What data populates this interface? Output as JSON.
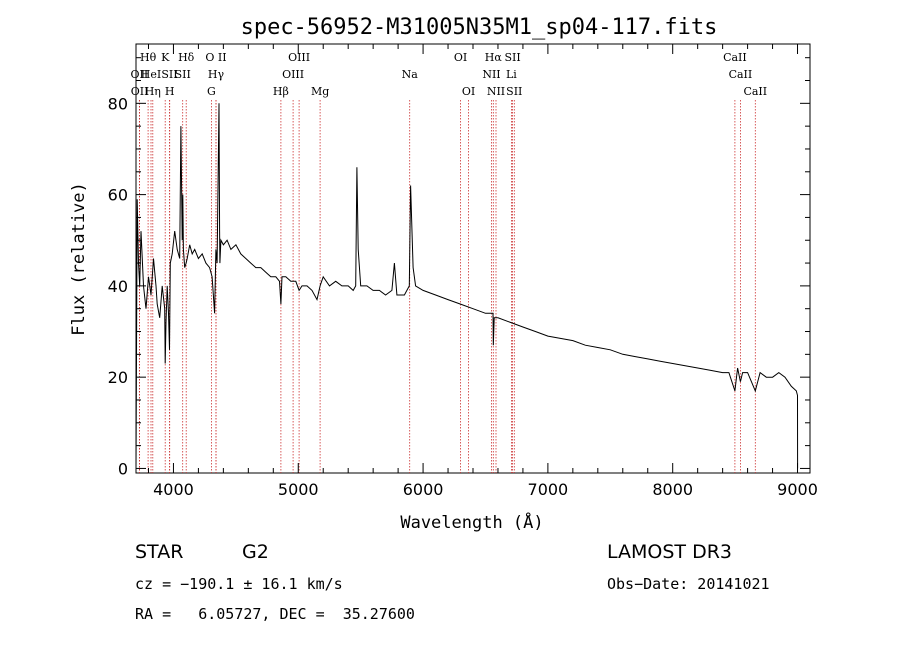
{
  "chart_data": {
    "type": "line",
    "title": "spec-56952-M31005N35M1_sp04-117.fits",
    "xlabel": "Wavelength (Å)",
    "ylabel": "Flux (relative)",
    "xlim": [
      3700,
      9100
    ],
    "ylim": [
      -1,
      93
    ],
    "xticks": [
      4000,
      5000,
      6000,
      7000,
      8000,
      9000
    ],
    "yticks": [
      0,
      20,
      40,
      60,
      80
    ],
    "spectrum": {
      "x": [
        3700,
        3710,
        3720,
        3730,
        3740,
        3760,
        3780,
        3800,
        3820,
        3840,
        3860,
        3870,
        3890,
        3910,
        3930,
        3934,
        3940,
        3950,
        3960,
        3968,
        3975,
        3990,
        4010,
        4030,
        4050,
        4060,
        4070,
        4075,
        4080,
        4090,
        4101,
        4110,
        4130,
        4150,
        4170,
        4200,
        4230,
        4260,
        4290,
        4310,
        4330,
        4340,
        4350,
        4365,
        4370,
        4372,
        4380,
        4400,
        4430,
        4460,
        4500,
        4540,
        4580,
        4620,
        4660,
        4700,
        4740,
        4780,
        4820,
        4850,
        4861,
        4870,
        4900,
        4940,
        4980,
        5007,
        5030,
        5070,
        5110,
        5150,
        5175,
        5200,
        5250,
        5300,
        5350,
        5400,
        5440,
        5460,
        5470,
        5480,
        5500,
        5550,
        5600,
        5650,
        5700,
        5750,
        5770,
        5790,
        5800,
        5850,
        5890,
        5900,
        5920,
        5940,
        6000,
        6100,
        6200,
        6300,
        6400,
        6500,
        6560,
        6563,
        6570,
        6600,
        6700,
        6800,
        6900,
        7000,
        7100,
        7200,
        7300,
        7400,
        7500,
        7600,
        7700,
        7800,
        7900,
        8000,
        8100,
        8200,
        8300,
        8400,
        8450,
        8498,
        8520,
        8542,
        8560,
        8600,
        8662,
        8700,
        8750,
        8800,
        8850,
        8900,
        8950,
        8990,
        9000,
        9001
      ],
      "flux": [
        0,
        59,
        45,
        40,
        52,
        40,
        35,
        42,
        38,
        46,
        40,
        36,
        33,
        40,
        35,
        23,
        32,
        40,
        34,
        26,
        45,
        47,
        52,
        48,
        46,
        75,
        50,
        60,
        48,
        44,
        45,
        46,
        49,
        47,
        48,
        46,
        47,
        45,
        44,
        42,
        34,
        48,
        45,
        80,
        52,
        45,
        50,
        49,
        50,
        48,
        49,
        47,
        46,
        45,
        44,
        44,
        43,
        42,
        42,
        41,
        36,
        42,
        42,
        41,
        41,
        39,
        40,
        40,
        39,
        37,
        40,
        42,
        40,
        41,
        40,
        40,
        39,
        40,
        66,
        48,
        40,
        40,
        39,
        39,
        38,
        39,
        45,
        38,
        38,
        38,
        40,
        62,
        44,
        40,
        39,
        38,
        37,
        36,
        35,
        34,
        34,
        27,
        33,
        33,
        32,
        31,
        30,
        29,
        28.5,
        28,
        27,
        26.5,
        26,
        25,
        24.5,
        24,
        23.5,
        23,
        22.5,
        22,
        21.5,
        21,
        21,
        17,
        22,
        19,
        21,
        21,
        17,
        21,
        20,
        20,
        21,
        20,
        18,
        17,
        16,
        0
      ]
    },
    "line_marks": [
      {
        "name": "OII",
        "x": 3727,
        "row": 1
      },
      {
        "name": "OII",
        "x": 3729,
        "row": 2
      },
      {
        "name": "Hθ",
        "x": 3797,
        "row": 0
      },
      {
        "name": "HeI",
        "x": 3820,
        "row": 1
      },
      {
        "name": "Hη",
        "x": 3835,
        "row": 2
      },
      {
        "name": "K",
        "x": 3934,
        "row": 0
      },
      {
        "name": "SII",
        "x": 3968,
        "row": 1
      },
      {
        "name": "H",
        "x": 3970,
        "row": 2
      },
      {
        "name": "Hδ",
        "x": 4102,
        "row": 0
      },
      {
        "name": "SII",
        "x": 4074,
        "row": 1
      },
      {
        "name": "O II",
        "x": 4341,
        "row": 0
      },
      {
        "name": "Hγ",
        "x": 4341,
        "row": 1
      },
      {
        "name": "G",
        "x": 4304,
        "row": 2
      },
      {
        "name": "Hβ",
        "x": 4861,
        "row": 2
      },
      {
        "name": "OIII",
        "x": 5007,
        "row": 0
      },
      {
        "name": "OIII",
        "x": 4959,
        "row": 1
      },
      {
        "name": "Mg",
        "x": 5175,
        "row": 2
      },
      {
        "name": "Na",
        "x": 5893,
        "row": 1
      },
      {
        "name": "OI",
        "x": 6300,
        "row": 0
      },
      {
        "name": "OI",
        "x": 6364,
        "row": 2
      },
      {
        "name": "Hα",
        "x": 6563,
        "row": 0
      },
      {
        "name": "NII",
        "x": 6548,
        "row": 1
      },
      {
        "name": "NII",
        "x": 6584,
        "row": 2
      },
      {
        "name": "SII",
        "x": 6717,
        "row": 0
      },
      {
        "name": "Li",
        "x": 6708,
        "row": 1
      },
      {
        "name": "SII",
        "x": 6731,
        "row": 2
      },
      {
        "name": "CaII",
        "x": 8498,
        "row": 0
      },
      {
        "name": "CaII",
        "x": 8542,
        "row": 1
      },
      {
        "name": "CaII",
        "x": 8662,
        "row": 2
      }
    ]
  },
  "info": {
    "object_class": "STAR",
    "subclass": "G2",
    "survey": "LAMOST DR3",
    "cz": "cz = −190.1 ± 16.1 km/s",
    "obs_date": "Obs−Date: 20141021",
    "coords": "RA =   6.05727, DEC =  35.27600"
  },
  "colors": {
    "spectrum": "#000000",
    "line_marker": "#cc3333",
    "axes": "#000000"
  }
}
